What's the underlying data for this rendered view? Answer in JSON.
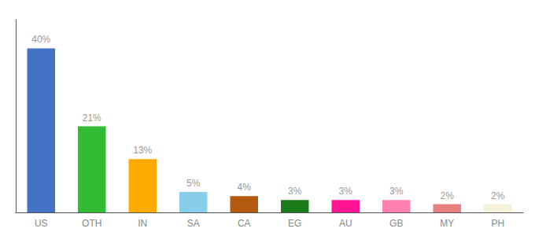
{
  "chart_data": {
    "type": "bar",
    "categories": [
      "US",
      "OTH",
      "IN",
      "SA",
      "CA",
      "EG",
      "AU",
      "GB",
      "MY",
      "PH"
    ],
    "values": [
      40,
      21,
      13,
      5,
      4,
      3,
      3,
      3,
      2,
      2
    ],
    "value_labels": [
      "40%",
      "21%",
      "13%",
      "5%",
      "4%",
      "3%",
      "3%",
      "3%",
      "2%",
      "2%"
    ],
    "colors": [
      "#4472c4",
      "#33bb33",
      "#ffaa00",
      "#87ceeb",
      "#b35a10",
      "#1a7d1a",
      "#ff1493",
      "#ff80b0",
      "#e88080",
      "#f5f0d8"
    ],
    "ylim": [
      0,
      47
    ],
    "data_labels": true,
    "tick_labels": "x",
    "grid": false
  }
}
